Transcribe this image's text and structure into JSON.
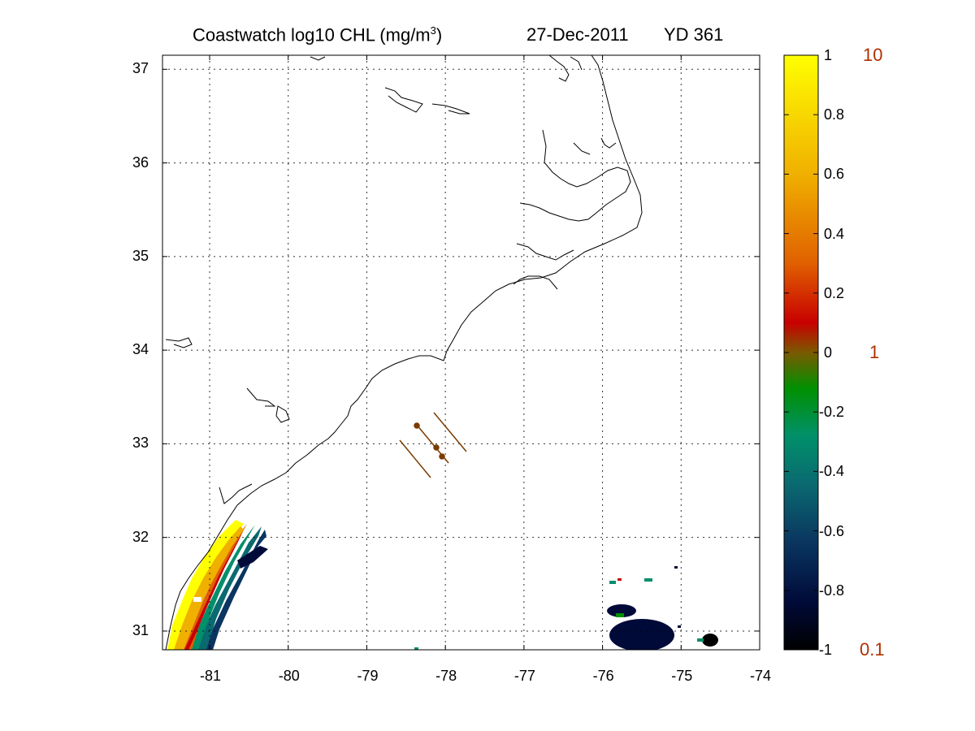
{
  "title": {
    "product": "Coastwatch  log10  CHL (mg/m",
    "superscript": "3",
    "close": ")",
    "date": "27-Dec-2011",
    "yearday": "YD 361"
  },
  "map": {
    "type": "chlorophyll satellite map",
    "lon_range": [
      -81.6,
      -74
    ],
    "lat_range": [
      30.8,
      37.15
    ],
    "x_ticks": [
      "-81",
      "-80",
      "-79",
      "-78",
      "-77",
      "-76",
      "-75",
      "-74"
    ],
    "y_ticks": [
      "31",
      "32",
      "33",
      "34",
      "35",
      "36",
      "37"
    ],
    "grid": "dotted",
    "coastline_color": "#000000",
    "track_color": "#7a3a00"
  },
  "colorbar": {
    "min": -1,
    "max": 1,
    "ticks": [
      "1",
      "0.8",
      "0.6",
      "0.4",
      "0.2",
      "0",
      "-0.2",
      "-0.4",
      "-0.6",
      "-0.8",
      "-1"
    ],
    "right_labels": [
      "10",
      "1",
      "0.1"
    ],
    "right_label_color": "#b03000",
    "colors": [
      "#000000",
      "#000a38",
      "#0a3560",
      "#0a6a70",
      "#00906a",
      "#009000",
      "#7a5a00",
      "#c80000",
      "#e06000",
      "#f0b000",
      "#ffff00"
    ]
  }
}
